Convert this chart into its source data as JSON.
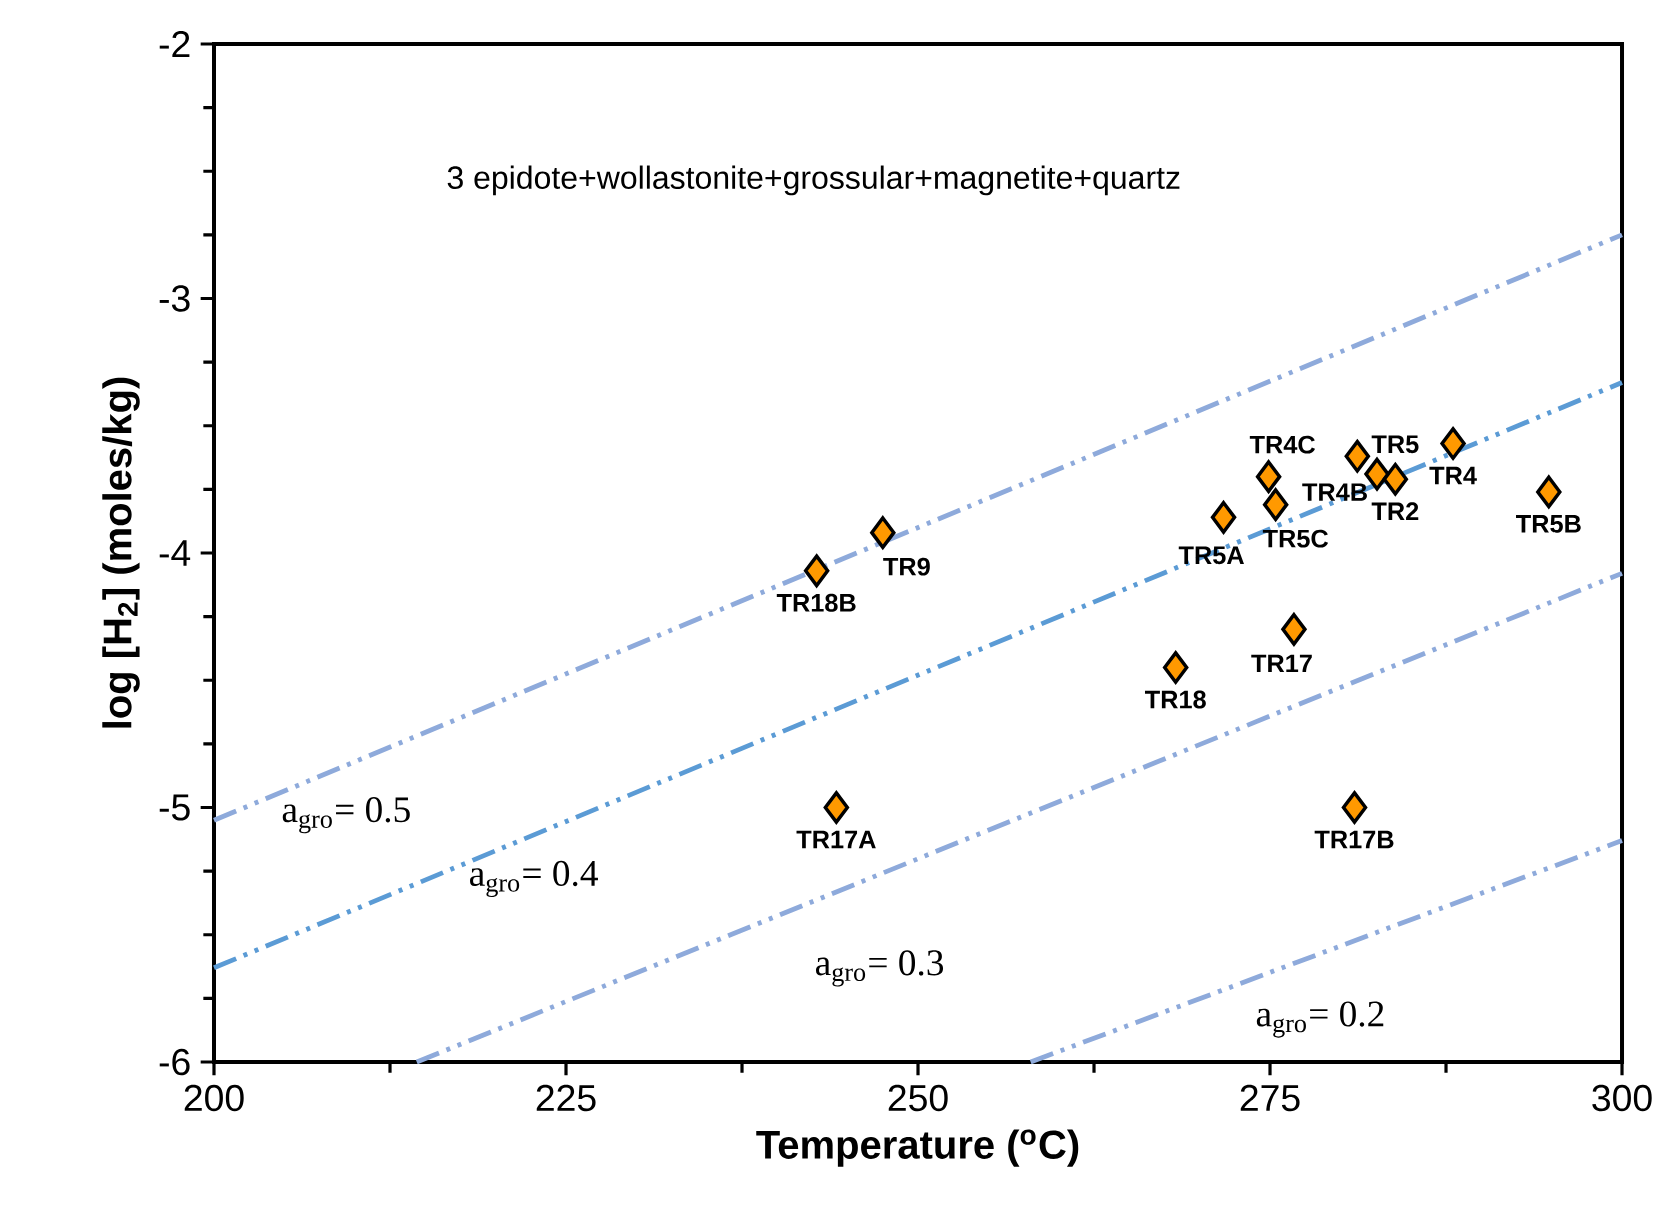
{
  "chart_data": {
    "type": "scatter",
    "xlabel": "Temperature ($^{o}$C)",
    "ylabel": "log [H$_{2}$] (moles/kg)",
    "xlim": [
      200,
      300
    ],
    "xticks": [
      200,
      225,
      250,
      275,
      300
    ],
    "ylim": [
      -6,
      -2
    ],
    "yticks": [
      -6,
      -5,
      -4,
      -3,
      -2
    ],
    "marker": "diamond",
    "grid": false,
    "annotations": [
      "3 epidote+wollastonite+grossular+magnetite+quartz"
    ],
    "series": [
      {
        "type": "line",
        "name": "a$_{gro}$= 0.5",
        "marker": "none",
        "color": "#8eaadb",
        "line_style": "dashed",
        "x": [
          200,
          300
        ],
        "values": [
          -5.05,
          -2.75
        ]
      },
      {
        "type": "line",
        "name": "a$_{gro}$= 0.4",
        "marker": "none",
        "color": "#5b9bd5",
        "line_style": "dashed",
        "x": [
          200,
          300
        ],
        "values": [
          -5.63,
          -3.33
        ]
      },
      {
        "type": "line",
        "name": "a$_{gro}$= 0.3",
        "marker": "none",
        "color": "#8eaadb",
        "line_style": "dashed",
        "x": [
          214.4,
          300
        ],
        "values": [
          -6,
          -4.08
        ]
      },
      {
        "type": "line",
        "name": "a$_{gro}$= 0.2",
        "marker": "none",
        "color": "#8eaadb",
        "line_style": "dashed",
        "x": [
          258,
          300
        ],
        "values": [
          -6,
          -5.13
        ]
      },
      {
        "name": "TR18B",
        "color": "#ff9900",
        "x": [
          242.8
        ],
        "values": [
          -4.07
        ]
      },
      {
        "name": "TR9",
        "color": "#ff9900",
        "x": [
          247.5
        ],
        "values": [
          -3.92
        ]
      },
      {
        "name": "TR5A",
        "color": "#ff9900",
        "x": [
          271.7
        ],
        "values": [
          -3.86
        ]
      },
      {
        "name": "TR4C",
        "color": "#ff9900",
        "x": [
          274.9
        ],
        "values": [
          -3.7
        ]
      },
      {
        "name": "TR5C",
        "color": "#ff9900",
        "x": [
          275.4
        ],
        "values": [
          -3.81
        ]
      },
      {
        "name": "TR5",
        "color": "#ff9900",
        "x": [
          281.2
        ],
        "values": [
          -3.62
        ]
      },
      {
        "name": "TR4B",
        "color": "#ff9900",
        "x": [
          282.6
        ],
        "values": [
          -3.69
        ]
      },
      {
        "name": "TR2",
        "color": "#ff9900",
        "x": [
          283.9
        ],
        "values": [
          -3.71
        ]
      },
      {
        "name": "TR4",
        "color": "#ff9900",
        "x": [
          288.0
        ],
        "values": [
          -3.57
        ]
      },
      {
        "name": "TR5B",
        "color": "#ff9900",
        "x": [
          294.8
        ],
        "values": [
          -3.76
        ]
      },
      {
        "name": "TR17",
        "color": "#ff9900",
        "x": [
          276.7
        ],
        "values": [
          -4.3
        ]
      },
      {
        "name": "TR18",
        "color": "#ff9900",
        "x": [
          268.3
        ],
        "values": [
          -4.45
        ]
      },
      {
        "name": "TR17A",
        "color": "#ff9900",
        "x": [
          244.2
        ],
        "values": [
          -5.0
        ]
      },
      {
        "name": "TR17B",
        "color": "#ff9900",
        "x": [
          281.0
        ],
        "values": [
          -5.0
        ]
      }
    ]
  }
}
